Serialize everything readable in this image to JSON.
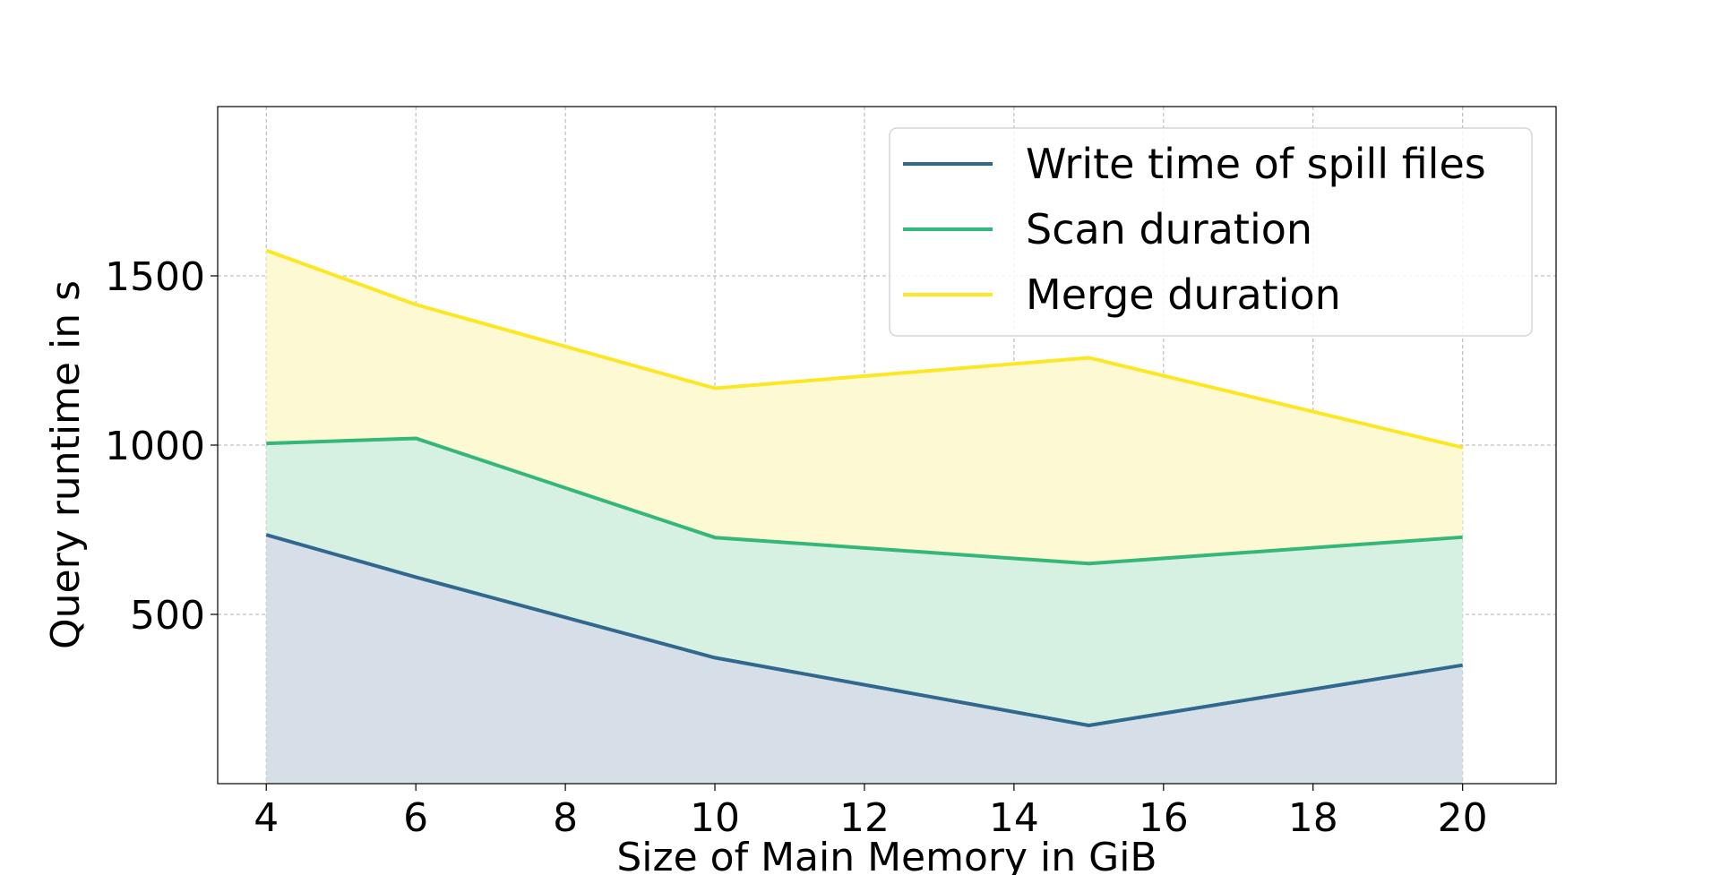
{
  "chart_data": {
    "type": "area",
    "title": "",
    "xlabel": "Size of Main Memory in GiB",
    "ylabel": "Query runtime in s",
    "x": [
      4,
      6,
      10,
      15,
      20
    ],
    "xlim": [
      3.35,
      21.25
    ],
    "ylim": [
      0,
      2000
    ],
    "xticks": [
      4,
      6,
      8,
      10,
      12,
      14,
      16,
      18,
      20
    ],
    "yticks": [
      500,
      1000,
      1500
    ],
    "grid": true,
    "stacked": true,
    "legend_position": "top-right",
    "series": [
      {
        "name": "Write time of spill files",
        "color": "#31688e",
        "fill": "#d6dfe8",
        "values": [
          735,
          610,
          372,
          172,
          350
        ]
      },
      {
        "name": "Scan duration",
        "color": "#35b779",
        "fill": "#d6f0e2",
        "values": [
          1005,
          1020,
          727,
          650,
          728
        ]
      },
      {
        "name": "Merge duration",
        "color": "#fde725",
        "fill": "#fdf9d3",
        "values": [
          1575,
          1415,
          1168,
          1258,
          993
        ]
      }
    ]
  }
}
